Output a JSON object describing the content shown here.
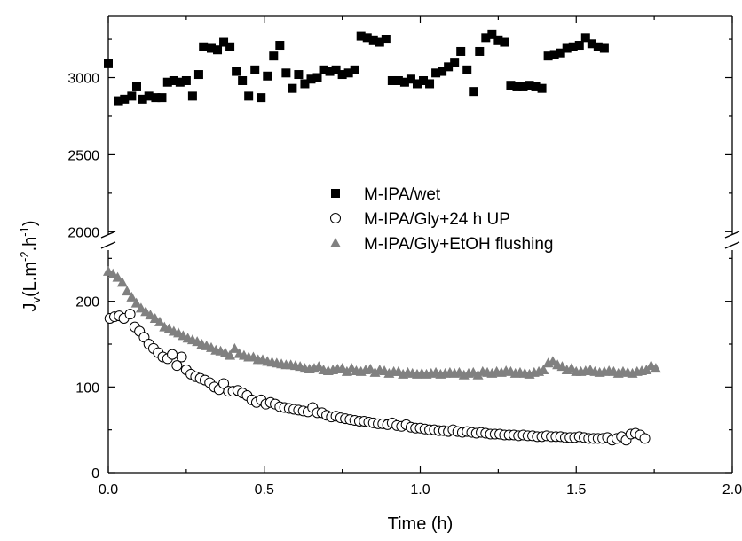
{
  "chart_data": {
    "type": "scatter",
    "xlabel": "Time (h)",
    "ylabel": "J",
    "ylabel_sub": "v",
    "ylabel_unit": "(L.m",
    "ylabel_exp1": "-2",
    "ylabel_mid": ".h",
    "ylabel_exp2": "-1",
    "ylabel_end": ")",
    "xlim": [
      0,
      2.0
    ],
    "x_ticks": [
      0.0,
      0.5,
      1.0,
      1.5,
      2.0
    ],
    "x_tick_labels": [
      "0.0",
      "0.5",
      "1.0",
      "1.5",
      "2.0"
    ],
    "y_axis_broken": true,
    "y_lower_range": [
      0,
      270
    ],
    "y_upper_range": [
      1950,
      3400
    ],
    "y_lower_ticks": [
      0,
      100,
      200
    ],
    "y_lower_tick_labels": [
      "0",
      "100",
      "200"
    ],
    "y_upper_ticks": [
      2000,
      2500,
      3000
    ],
    "y_upper_tick_labels": [
      "2000",
      "2500",
      "3000"
    ],
    "grid": false,
    "legend_position": "center",
    "series": [
      {
        "name": "M-IPA/wet",
        "marker": "square",
        "color": "#000000",
        "x": [
          0.0,
          0.033,
          0.052,
          0.075,
          0.091,
          0.11,
          0.13,
          0.152,
          0.172,
          0.19,
          0.21,
          0.23,
          0.25,
          0.27,
          0.29,
          0.305,
          0.33,
          0.35,
          0.37,
          0.39,
          0.41,
          0.43,
          0.45,
          0.47,
          0.49,
          0.51,
          0.53,
          0.55,
          0.57,
          0.59,
          0.61,
          0.63,
          0.65,
          0.67,
          0.69,
          0.71,
          0.73,
          0.75,
          0.77,
          0.79,
          0.81,
          0.83,
          0.85,
          0.87,
          0.89,
          0.91,
          0.93,
          0.95,
          0.97,
          0.99,
          1.01,
          1.03,
          1.05,
          1.07,
          1.09,
          1.11,
          1.13,
          1.15,
          1.17,
          1.19,
          1.21,
          1.23,
          1.25,
          1.27,
          1.29,
          1.31,
          1.33,
          1.35,
          1.37,
          1.39,
          1.41,
          1.43,
          1.45,
          1.47,
          1.49,
          1.51,
          1.53,
          1.55,
          1.57,
          1.59
        ],
        "y": [
          3090,
          2850,
          2860,
          2880,
          2940,
          2860,
          2880,
          2870,
          2870,
          2970,
          2980,
          2970,
          2980,
          2880,
          3020,
          3200,
          3190,
          3180,
          3230,
          3200,
          3040,
          2980,
          2880,
          3050,
          2870,
          3010,
          3140,
          3210,
          3030,
          2930,
          3020,
          2960,
          2990,
          3000,
          3050,
          3040,
          3050,
          3020,
          3030,
          3050,
          3270,
          3260,
          3240,
          3230,
          3250,
          2980,
          2980,
          2970,
          2990,
          2960,
          2980,
          2960,
          3030,
          3040,
          3070,
          3100,
          3170,
          3050,
          2910,
          3170,
          3260,
          3280,
          3240,
          3230,
          2950,
          2940,
          2940,
          2950,
          2940,
          2930,
          3140,
          3150,
          3160,
          3190,
          3200,
          3210,
          3260,
          3220,
          3200,
          3190
        ]
      },
      {
        "name": "M-IPA/Gly+24 h UP",
        "marker": "circle-open",
        "color": "#000000",
        "x": [
          0.005,
          0.02,
          0.035,
          0.05,
          0.07,
          0.085,
          0.1,
          0.115,
          0.13,
          0.145,
          0.16,
          0.175,
          0.19,
          0.205,
          0.22,
          0.235,
          0.25,
          0.265,
          0.28,
          0.295,
          0.31,
          0.325,
          0.34,
          0.355,
          0.37,
          0.385,
          0.4,
          0.415,
          0.43,
          0.445,
          0.46,
          0.475,
          0.49,
          0.505,
          0.52,
          0.535,
          0.55,
          0.565,
          0.58,
          0.595,
          0.61,
          0.625,
          0.64,
          0.655,
          0.67,
          0.685,
          0.7,
          0.715,
          0.73,
          0.745,
          0.76,
          0.775,
          0.79,
          0.805,
          0.82,
          0.835,
          0.85,
          0.865,
          0.88,
          0.895,
          0.91,
          0.925,
          0.94,
          0.955,
          0.97,
          0.985,
          1.0,
          1.015,
          1.03,
          1.045,
          1.06,
          1.075,
          1.09,
          1.105,
          1.12,
          1.135,
          1.15,
          1.165,
          1.18,
          1.195,
          1.21,
          1.225,
          1.24,
          1.255,
          1.27,
          1.285,
          1.3,
          1.315,
          1.33,
          1.345,
          1.36,
          1.375,
          1.39,
          1.405,
          1.42,
          1.435,
          1.45,
          1.465,
          1.48,
          1.495,
          1.51,
          1.525,
          1.54,
          1.555,
          1.57,
          1.585,
          1.6,
          1.615,
          1.63,
          1.645,
          1.66,
          1.675,
          1.69,
          1.705,
          1.72
        ],
        "y": [
          180,
          182,
          183,
          180,
          185,
          170,
          165,
          158,
          150,
          145,
          140,
          135,
          133,
          138,
          125,
          135,
          120,
          115,
          112,
          110,
          108,
          105,
          100,
          97,
          104,
          95,
          95,
          96,
          93,
          90,
          85,
          82,
          85,
          80,
          82,
          80,
          77,
          76,
          75,
          74,
          73,
          72,
          71,
          76,
          70,
          70,
          67,
          65,
          66,
          64,
          63,
          62,
          61,
          60,
          60,
          59,
          58,
          57,
          57,
          56,
          58,
          55,
          54,
          56,
          53,
          52,
          52,
          51,
          50,
          50,
          49,
          49,
          48,
          50,
          48,
          47,
          48,
          47,
          46,
          47,
          46,
          45,
          45,
          45,
          44,
          44,
          44,
          43,
          44,
          43,
          43,
          42,
          42,
          43,
          42,
          42,
          42,
          41,
          41,
          41,
          42,
          41,
          40,
          40,
          40,
          40,
          41,
          38,
          40,
          42,
          38,
          45,
          46,
          44,
          40
        ]
      },
      {
        "name": "M-IPA/Gly+EtOH flushing",
        "marker": "triangle",
        "color": "#808080",
        "x": [
          0.0,
          0.015,
          0.03,
          0.045,
          0.06,
          0.075,
          0.09,
          0.105,
          0.12,
          0.135,
          0.15,
          0.165,
          0.18,
          0.195,
          0.21,
          0.225,
          0.24,
          0.255,
          0.27,
          0.285,
          0.3,
          0.315,
          0.33,
          0.345,
          0.36,
          0.375,
          0.39,
          0.405,
          0.42,
          0.435,
          0.45,
          0.465,
          0.48,
          0.495,
          0.51,
          0.525,
          0.54,
          0.555,
          0.57,
          0.585,
          0.6,
          0.615,
          0.63,
          0.645,
          0.66,
          0.675,
          0.69,
          0.705,
          0.72,
          0.735,
          0.75,
          0.765,
          0.78,
          0.795,
          0.81,
          0.825,
          0.84,
          0.855,
          0.87,
          0.885,
          0.9,
          0.915,
          0.93,
          0.945,
          0.96,
          0.975,
          0.99,
          1.005,
          1.02,
          1.035,
          1.05,
          1.065,
          1.08,
          1.095,
          1.11,
          1.125,
          1.14,
          1.155,
          1.17,
          1.185,
          1.2,
          1.215,
          1.23,
          1.245,
          1.26,
          1.275,
          1.29,
          1.305,
          1.32,
          1.335,
          1.35,
          1.365,
          1.38,
          1.395,
          1.41,
          1.425,
          1.44,
          1.455,
          1.47,
          1.485,
          1.5,
          1.515,
          1.53,
          1.545,
          1.56,
          1.575,
          1.59,
          1.605,
          1.62,
          1.635,
          1.65,
          1.665,
          1.68,
          1.695,
          1.71,
          1.725,
          1.74,
          1.755
        ],
        "y": [
          235,
          232,
          228,
          222,
          212,
          205,
          198,
          192,
          188,
          184,
          180,
          176,
          170,
          168,
          165,
          163,
          160,
          157,
          155,
          153,
          150,
          148,
          146,
          143,
          142,
          140,
          137,
          145,
          139,
          137,
          135,
          135,
          132,
          132,
          130,
          129,
          128,
          127,
          126,
          126,
          125,
          124,
          122,
          121,
          122,
          124,
          120,
          119,
          120,
          121,
          122,
          118,
          122,
          119,
          118,
          120,
          121,
          117,
          120,
          119,
          116,
          118,
          118,
          115,
          117,
          116,
          115,
          116,
          115,
          116,
          117,
          115,
          116,
          117,
          116,
          117,
          114,
          116,
          117,
          114,
          118,
          117,
          116,
          118,
          117,
          119,
          118,
          116,
          117,
          116,
          115,
          117,
          118,
          120,
          128,
          130,
          126,
          124,
          120,
          122,
          118,
          118,
          119,
          120,
          118,
          117,
          118,
          119,
          118,
          116,
          118,
          117,
          116,
          118,
          119,
          120,
          125,
          122
        ]
      }
    ]
  }
}
